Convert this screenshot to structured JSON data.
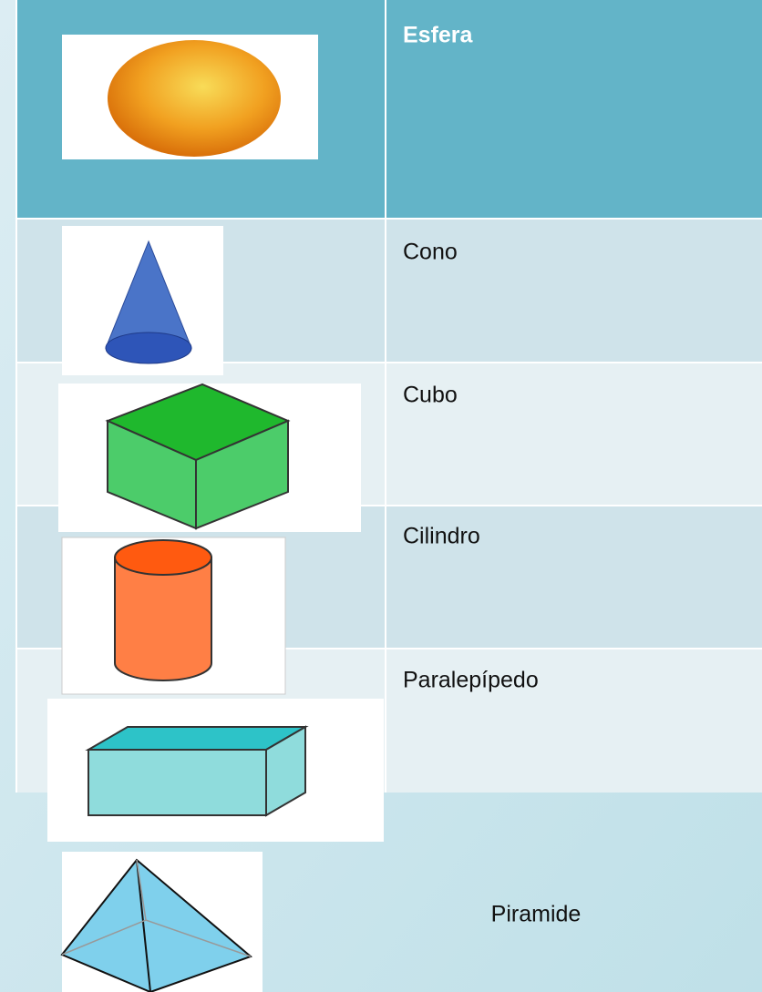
{
  "table": {
    "header": "Esfera",
    "rows": [
      "Cono",
      "Cubo",
      "Cilindro",
      "Paralepípedo"
    ]
  },
  "footer": "Piramide"
}
